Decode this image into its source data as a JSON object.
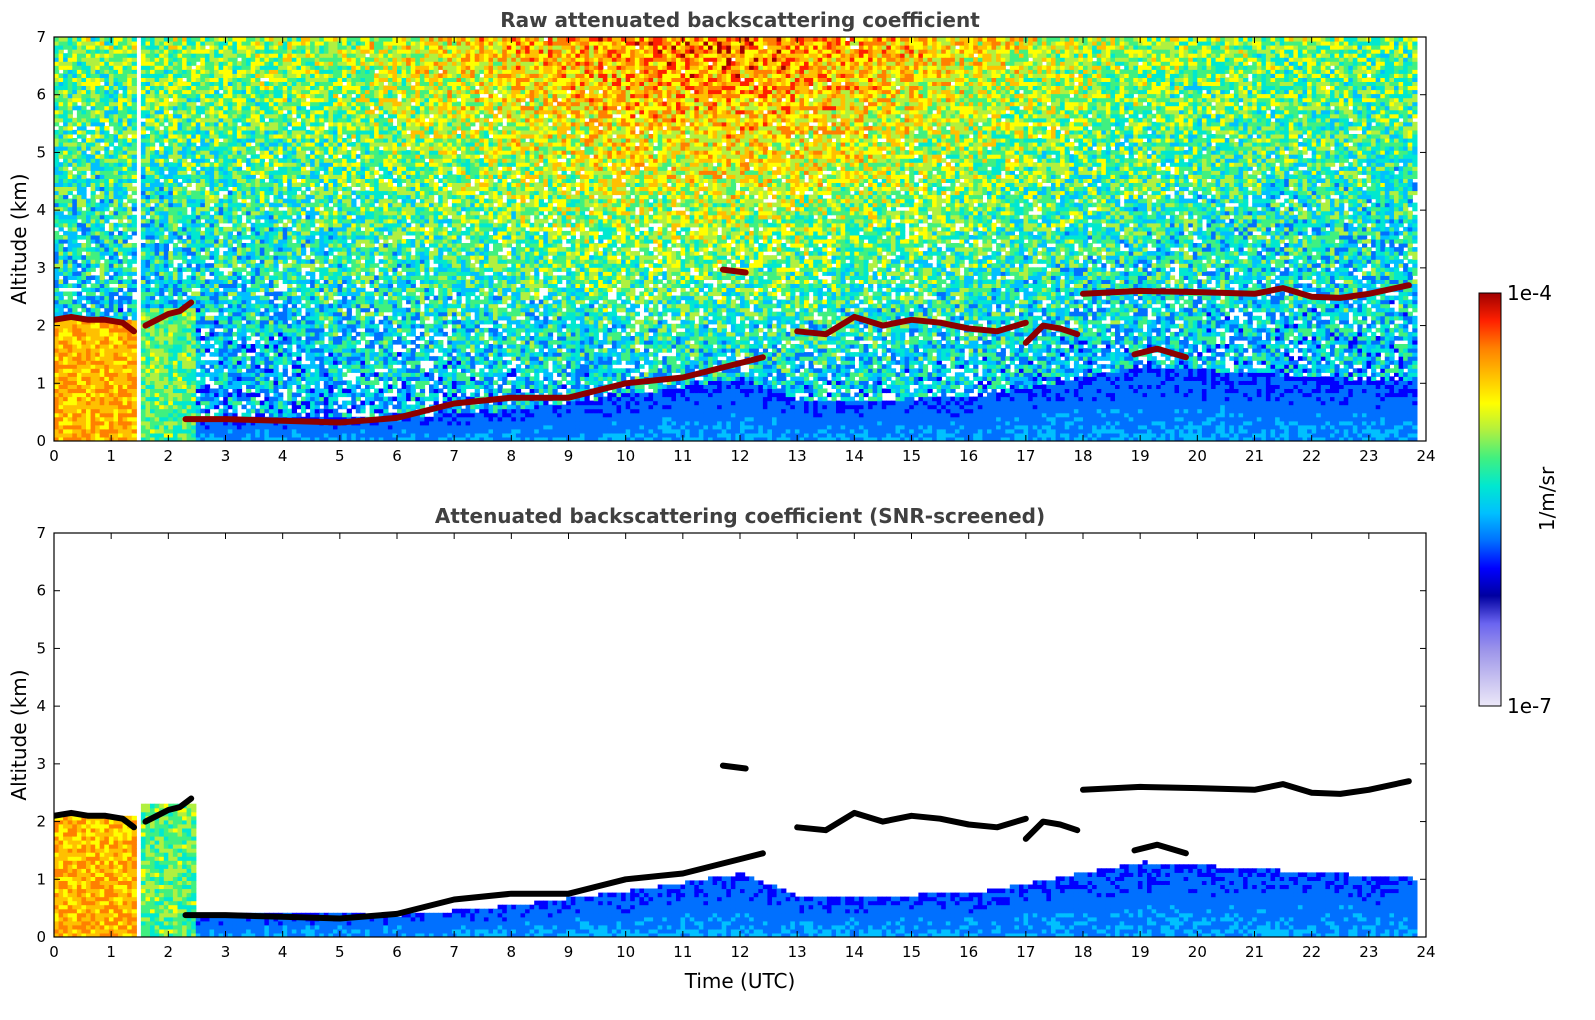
{
  "colors": {
    "colormap": [
      "#0000a0",
      "#0000ff",
      "#0070ff",
      "#00c0ff",
      "#00e8d0",
      "#40f080",
      "#b0f040",
      "#ffff00",
      "#ffc000",
      "#ff8000",
      "#ff2000",
      "#a00000"
    ],
    "low_end": [
      "#ece8f8",
      "#c6c0f0",
      "#9e96ea",
      "#6a64f0"
    ],
    "cloud_dark": "#8b0000",
    "cloud_black": "#000000"
  },
  "colorbar": {
    "max_label": "1e-4",
    "min_label": "1e-7",
    "unit_label": "1/m/sr"
  },
  "chart_data": [
    {
      "type": "heatmap",
      "title": "Raw attenuated backscattering coefficient",
      "xlabel": "",
      "ylabel": "Altitude (km)",
      "xlim": [
        0,
        24
      ],
      "ylim": [
        0,
        7
      ],
      "xticks": [
        0,
        1,
        2,
        3,
        4,
        5,
        6,
        7,
        8,
        9,
        10,
        11,
        12,
        13,
        14,
        15,
        16,
        17,
        18,
        19,
        20,
        21,
        22,
        23,
        24
      ],
      "yticks": [
        0,
        1,
        2,
        3,
        4,
        5,
        6,
        7
      ],
      "color_scale": "log",
      "clim": [
        "1e-7",
        "1e-4"
      ],
      "data_gaps_hours": [
        [
          1.42,
          1.56
        ],
        [
          19.08,
          19.12
        ],
        [
          23.8,
          24.0
        ]
      ],
      "cloud_layers": [
        {
          "x": [
            0,
            0.3,
            0.6,
            0.9,
            1.2,
            1.4
          ],
          "y": [
            2.1,
            2.15,
            2.1,
            2.1,
            2.05,
            1.9
          ]
        },
        {
          "x": [
            1.6,
            1.8,
            2.0,
            2.2,
            2.4
          ],
          "y": [
            2.0,
            2.1,
            2.2,
            2.25,
            2.4
          ]
        },
        {
          "x": [
            2.3,
            3.0,
            4.0,
            5.0,
            6.0,
            7.0,
            8.0,
            9.0,
            10.0,
            11.0,
            12.0,
            12.4
          ],
          "y": [
            0.38,
            0.38,
            0.35,
            0.32,
            0.4,
            0.65,
            0.75,
            0.75,
            1.0,
            1.1,
            1.35,
            1.45
          ]
        },
        {
          "x": [
            11.7,
            12.1
          ],
          "y": [
            2.97,
            2.92
          ]
        },
        {
          "x": [
            13.0,
            13.5,
            14.0,
            14.5,
            15.0,
            15.5,
            16.0,
            16.5,
            17.0
          ],
          "y": [
            1.9,
            1.85,
            2.15,
            2.0,
            2.1,
            2.05,
            1.95,
            1.9,
            2.05
          ]
        },
        {
          "x": [
            17.0,
            17.3,
            17.6,
            17.9
          ],
          "y": [
            1.7,
            2.0,
            1.95,
            1.85
          ]
        },
        {
          "x": [
            18.0,
            19.0,
            20.0,
            21.0,
            21.5,
            22.0,
            22.5,
            23.0,
            23.7
          ],
          "y": [
            2.55,
            2.6,
            2.58,
            2.55,
            2.65,
            2.5,
            2.48,
            2.55,
            2.7
          ]
        },
        {
          "x": [
            18.9,
            19.3,
            19.8
          ],
          "y": [
            1.5,
            1.6,
            1.45
          ]
        }
      ]
    },
    {
      "type": "heatmap",
      "title": "Attenuated backscattering coefficient (SNR-screened)",
      "xlabel": "Time (UTC)",
      "ylabel": "Altitude (km)",
      "xlim": [
        0,
        24
      ],
      "ylim": [
        0,
        7
      ],
      "xticks": [
        0,
        1,
        2,
        3,
        4,
        5,
        6,
        7,
        8,
        9,
        10,
        11,
        12,
        13,
        14,
        15,
        16,
        17,
        18,
        19,
        20,
        21,
        22,
        23,
        24
      ],
      "yticks": [
        0,
        1,
        2,
        3,
        4,
        5,
        6,
        7
      ],
      "color_scale": "log",
      "clim": [
        "1e-7",
        "1e-4"
      ],
      "data_gaps_hours": [
        [
          1.42,
          1.56
        ],
        [
          19.08,
          19.12
        ],
        [
          23.8,
          24.0
        ]
      ],
      "cloud_layers": [
        {
          "x": [
            0,
            0.3,
            0.6,
            0.9,
            1.2,
            1.4
          ],
          "y": [
            2.1,
            2.15,
            2.1,
            2.1,
            2.05,
            1.9
          ]
        },
        {
          "x": [
            1.6,
            1.8,
            2.0,
            2.2,
            2.4
          ],
          "y": [
            2.0,
            2.1,
            2.2,
            2.25,
            2.4
          ]
        },
        {
          "x": [
            2.3,
            3.0,
            4.0,
            5.0,
            6.0,
            7.0,
            8.0,
            9.0,
            10.0,
            11.0,
            12.0,
            12.4
          ],
          "y": [
            0.38,
            0.38,
            0.35,
            0.32,
            0.4,
            0.65,
            0.75,
            0.75,
            1.0,
            1.1,
            1.35,
            1.45
          ]
        },
        {
          "x": [
            11.7,
            12.1
          ],
          "y": [
            2.97,
            2.92
          ]
        },
        {
          "x": [
            13.0,
            13.5,
            14.0,
            14.5,
            15.0,
            15.5,
            16.0,
            16.5,
            17.0
          ],
          "y": [
            1.9,
            1.85,
            2.15,
            2.0,
            2.1,
            2.05,
            1.95,
            1.9,
            2.05
          ]
        },
        {
          "x": [
            17.0,
            17.3,
            17.6,
            17.9
          ],
          "y": [
            1.7,
            2.0,
            1.95,
            1.85
          ]
        },
        {
          "x": [
            18.0,
            19.0,
            20.0,
            21.0,
            21.5,
            22.0,
            22.5,
            23.0,
            23.7
          ],
          "y": [
            2.55,
            2.6,
            2.58,
            2.55,
            2.65,
            2.5,
            2.48,
            2.55,
            2.7
          ]
        },
        {
          "x": [
            18.9,
            19.3,
            19.8
          ],
          "y": [
            1.5,
            1.6,
            1.45
          ]
        }
      ]
    }
  ]
}
